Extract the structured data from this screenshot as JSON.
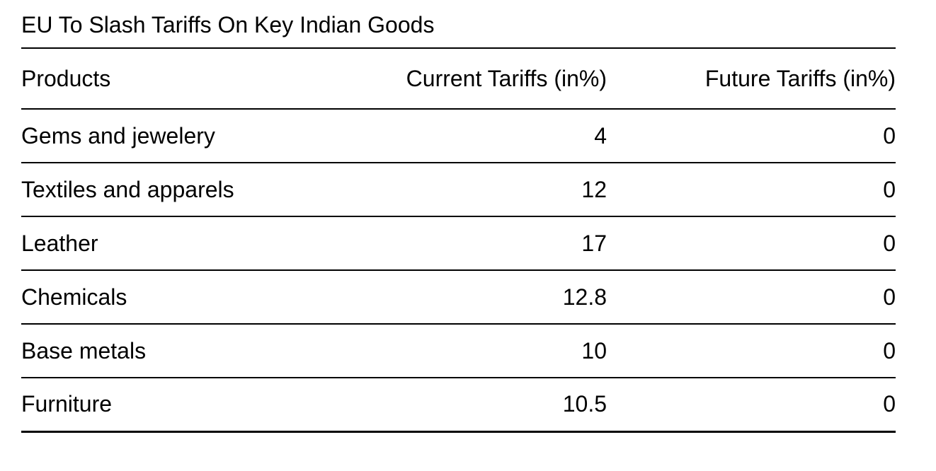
{
  "page": {
    "title": "EU To Slash Tariffs On Key Indian Goods"
  },
  "colors": {
    "background": "#ffffff",
    "text": "#000000",
    "rule": "#000000"
  },
  "table": {
    "headers": {
      "products": "Products",
      "current": "Current Tariffs (in%)",
      "future": "Future Tariffs (in%)"
    },
    "rows": [
      {
        "product": "Gems and jewelery",
        "current": "4",
        "future": "0"
      },
      {
        "product": "Textiles and apparels",
        "current": "12",
        "future": "0"
      },
      {
        "product": "Leather",
        "current": "17",
        "future": "0"
      },
      {
        "product": "Chemicals",
        "current": "12.8",
        "future": "0"
      },
      {
        "product": "Base metals",
        "current": "10",
        "future": "0"
      },
      {
        "product": "Furniture",
        "current": "10.5",
        "future": "0"
      }
    ]
  },
  "chart_data": {
    "type": "table",
    "title": "EU To Slash Tariffs On Key Indian Goods",
    "columns": [
      "Products",
      "Current Tariffs (in%)",
      "Future Tariffs (in%)"
    ],
    "rows": [
      [
        "Gems and jewelery",
        4,
        0
      ],
      [
        "Textiles and apparels",
        12,
        0
      ],
      [
        "Leather",
        17,
        0
      ],
      [
        "Chemicals",
        12.8,
        0
      ],
      [
        "Base metals",
        10,
        0
      ],
      [
        "Furniture",
        10.5,
        0
      ]
    ],
    "layout": {
      "numeric_alignment": "right",
      "row_separators": true,
      "grid_vertical": false
    }
  }
}
